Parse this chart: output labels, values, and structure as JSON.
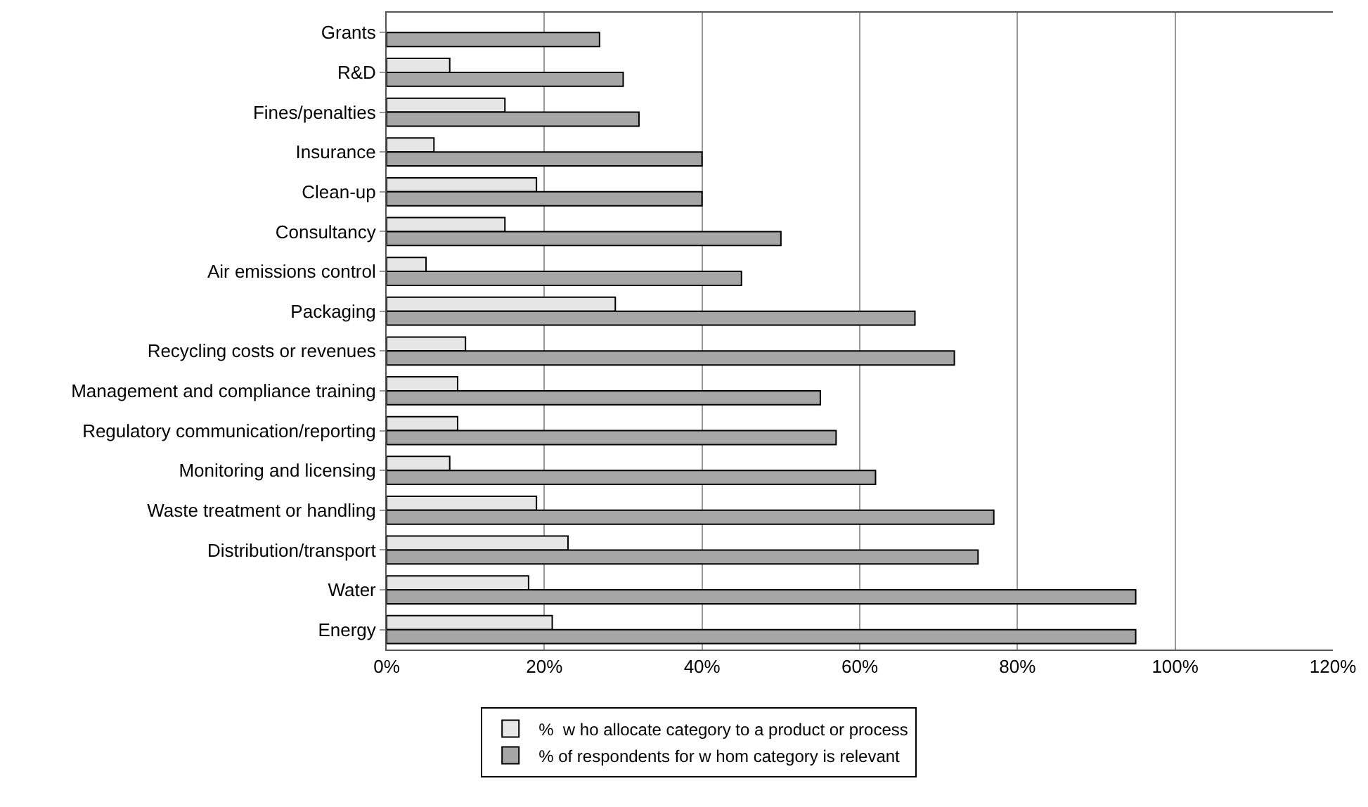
{
  "chart_data": {
    "type": "bar",
    "orientation": "horizontal",
    "categories": [
      "Grants",
      "R&D",
      "Fines/penalties",
      "Insurance",
      "Clean-up",
      "Consultancy",
      "Air emissions control",
      "Packaging",
      "Recycling costs or revenues",
      "Management and compliance training",
      "Regulatory communication/reporting",
      "Monitoring and licensing",
      "Waste treatment or handling",
      "Distribution/transport",
      "Water",
      "Energy"
    ],
    "series": [
      {
        "name": "%  w ho allocate category to a product or process",
        "color": "#e6e6e6",
        "values": [
          null,
          8,
          15,
          6,
          19,
          15,
          5,
          29,
          10,
          9,
          9,
          8,
          19,
          23,
          18,
          21
        ]
      },
      {
        "name": "% of respondents for w hom category is relevant",
        "color": "#a6a6a6",
        "values": [
          27,
          30,
          32,
          40,
          40,
          50,
          45,
          67,
          72,
          55,
          57,
          62,
          77,
          75,
          95,
          95
        ]
      }
    ],
    "xlim": [
      0,
      120
    ],
    "xticks": [
      {
        "value": 0,
        "label": "0%"
      },
      {
        "value": 20,
        "label": "20%"
      },
      {
        "value": 40,
        "label": "40%"
      },
      {
        "value": 60,
        "label": "60%"
      },
      {
        "value": 80,
        "label": "80%"
      },
      {
        "value": 100,
        "label": "100%"
      },
      {
        "value": 120,
        "label": "120%"
      }
    ],
    "grid": "x",
    "legend": "bottom"
  }
}
